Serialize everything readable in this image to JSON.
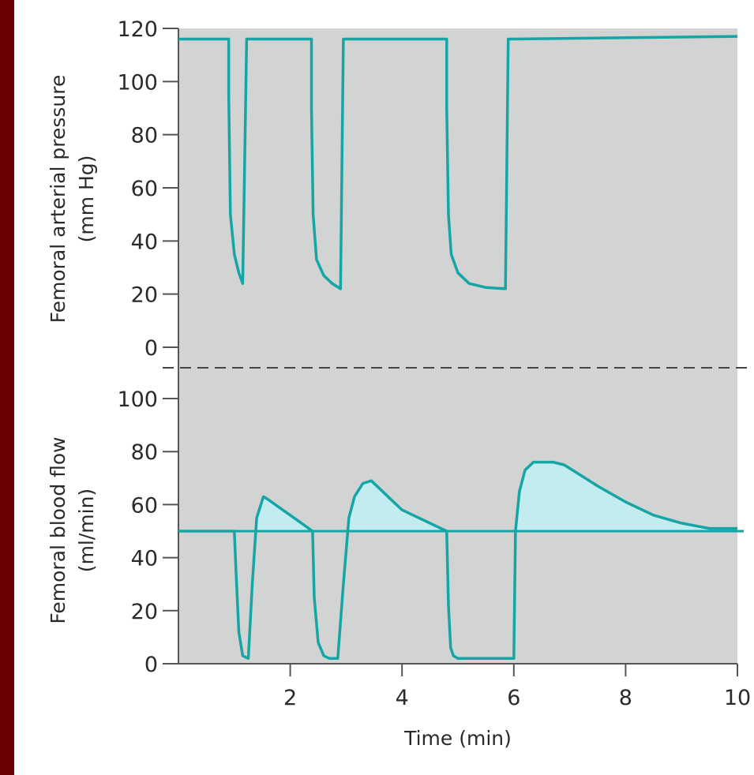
{
  "chart_data": [
    {
      "type": "line",
      "panel": "top",
      "title": "",
      "ylabel_line1": "Femoral arterial pressure",
      "ylabel_line2": "(mm Hg)",
      "xlabel": "",
      "ylim": [
        0,
        120
      ],
      "xlim": [
        0,
        10
      ],
      "yticks": [
        "120",
        "100",
        "80",
        "60",
        "40",
        "20",
        "0"
      ],
      "series": [
        {
          "x": [
            0,
            0.9,
            0.9,
            0.93,
            1.0,
            1.08,
            1.15,
            1.15,
            1.22,
            1.28,
            2.38,
            2.38,
            2.41,
            2.47,
            2.6,
            2.75,
            2.9,
            2.9,
            2.95,
            3.0,
            4.8,
            4.8,
            4.83,
            4.88,
            5.0,
            5.2,
            5.5,
            5.85,
            5.85,
            5.9,
            5.95,
            10
          ],
          "y": [
            116,
            116,
            95,
            50,
            35,
            28,
            24,
            24,
            116,
            116,
            116,
            90,
            50,
            33,
            27,
            24,
            22,
            22,
            116,
            116,
            116,
            90,
            50,
            35,
            28,
            24,
            22.5,
            22,
            22,
            116,
            116,
            117
          ]
        }
      ],
      "colors": {
        "line": "#16a5a5",
        "plot_bg": "#d2d3d3"
      }
    },
    {
      "type": "area",
      "panel": "bottom",
      "title": "",
      "ylabel_line1": "Femoral blood flow",
      "ylabel_line2": "(ml/min)",
      "xlabel": "Time (min)",
      "ylim": [
        0,
        100
      ],
      "xlim": [
        0,
        10
      ],
      "yticks": [
        "100",
        "80",
        "60",
        "40",
        "20",
        "0"
      ],
      "xticks": [
        {
          "value": 2,
          "label": "2"
        },
        {
          "value": 4,
          "label": "4"
        },
        {
          "value": 6,
          "label": "6"
        },
        {
          "value": 8,
          "label": "8"
        },
        {
          "value": 10,
          "label": "10"
        }
      ],
      "baseline": 50,
      "series": [
        {
          "x": [
            0,
            1.0,
            1.03,
            1.08,
            1.15,
            1.25,
            1.32,
            1.4,
            1.52,
            1.6,
            1.8,
            2.0,
            2.2,
            2.4,
            2.43,
            2.5,
            2.6,
            2.7,
            2.85,
            2.95,
            3.05,
            3.15,
            3.3,
            3.45,
            3.6,
            3.8,
            4.0,
            4.3,
            4.6,
            4.8,
            4.83,
            4.87,
            4.92,
            5.0,
            5.5,
            6.0,
            6.03,
            6.1,
            6.2,
            6.35,
            6.5,
            6.7,
            6.9,
            7.2,
            7.5,
            8.0,
            8.5,
            9.0,
            9.5,
            10
          ],
          "y": [
            50,
            50,
            35,
            12,
            3,
            2,
            30,
            55,
            63,
            62,
            59,
            56,
            53,
            50,
            25,
            8,
            3,
            2,
            2,
            30,
            55,
            63,
            68,
            69,
            66,
            62,
            58,
            55,
            52,
            50,
            22,
            6,
            3,
            2,
            2,
            2,
            50,
            65,
            73,
            76,
            76,
            76,
            75,
            71,
            67,
            61,
            56,
            53,
            51,
            51
          ]
        }
      ],
      "colors": {
        "line": "#16a5a5",
        "fill": "#c2ecef",
        "plot_bg": "#d2d3d3"
      }
    }
  ]
}
